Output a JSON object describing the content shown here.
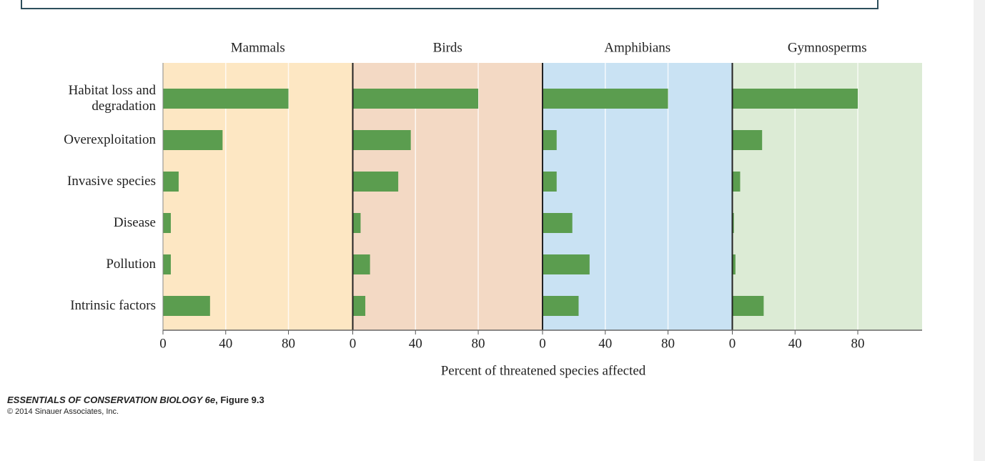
{
  "chart_data": {
    "type": "bar",
    "orientation": "horizontal",
    "categories": [
      "Habitat loss and degradation",
      "Overexploitation",
      "Invasive species",
      "Disease",
      "Pollution",
      "Intrinsic factors"
    ],
    "series": [
      {
        "name": "Mammals",
        "color": "#5b9d4f",
        "background": "#fde7c3",
        "values": [
          80,
          38,
          10,
          5,
          5,
          30
        ]
      },
      {
        "name": "Birds",
        "color": "#5b9d4f",
        "background": "#f3d9c4",
        "values": [
          80,
          37,
          29,
          5,
          11,
          8
        ]
      },
      {
        "name": "Amphibians",
        "color": "#5b9d4f",
        "background": "#c9e2f3",
        "values": [
          80,
          9,
          9,
          19,
          30,
          23
        ]
      },
      {
        "name": "Gymnosperms",
        "color": "#5b9d4f",
        "background": "#dcebd5",
        "values": [
          80,
          19,
          5,
          1,
          2,
          20
        ]
      }
    ],
    "xlim": [
      0,
      121
    ],
    "xticks": [
      0,
      40,
      80
    ],
    "grid": true,
    "xlabel": "Percent of threatened species affected"
  },
  "caption": {
    "book": "ESSENTIALS OF CONSERVATION BIOLOGY 6e",
    "figure": ", Figure 9.3",
    "copyright": "© 2014 Sinauer Associates, Inc."
  }
}
